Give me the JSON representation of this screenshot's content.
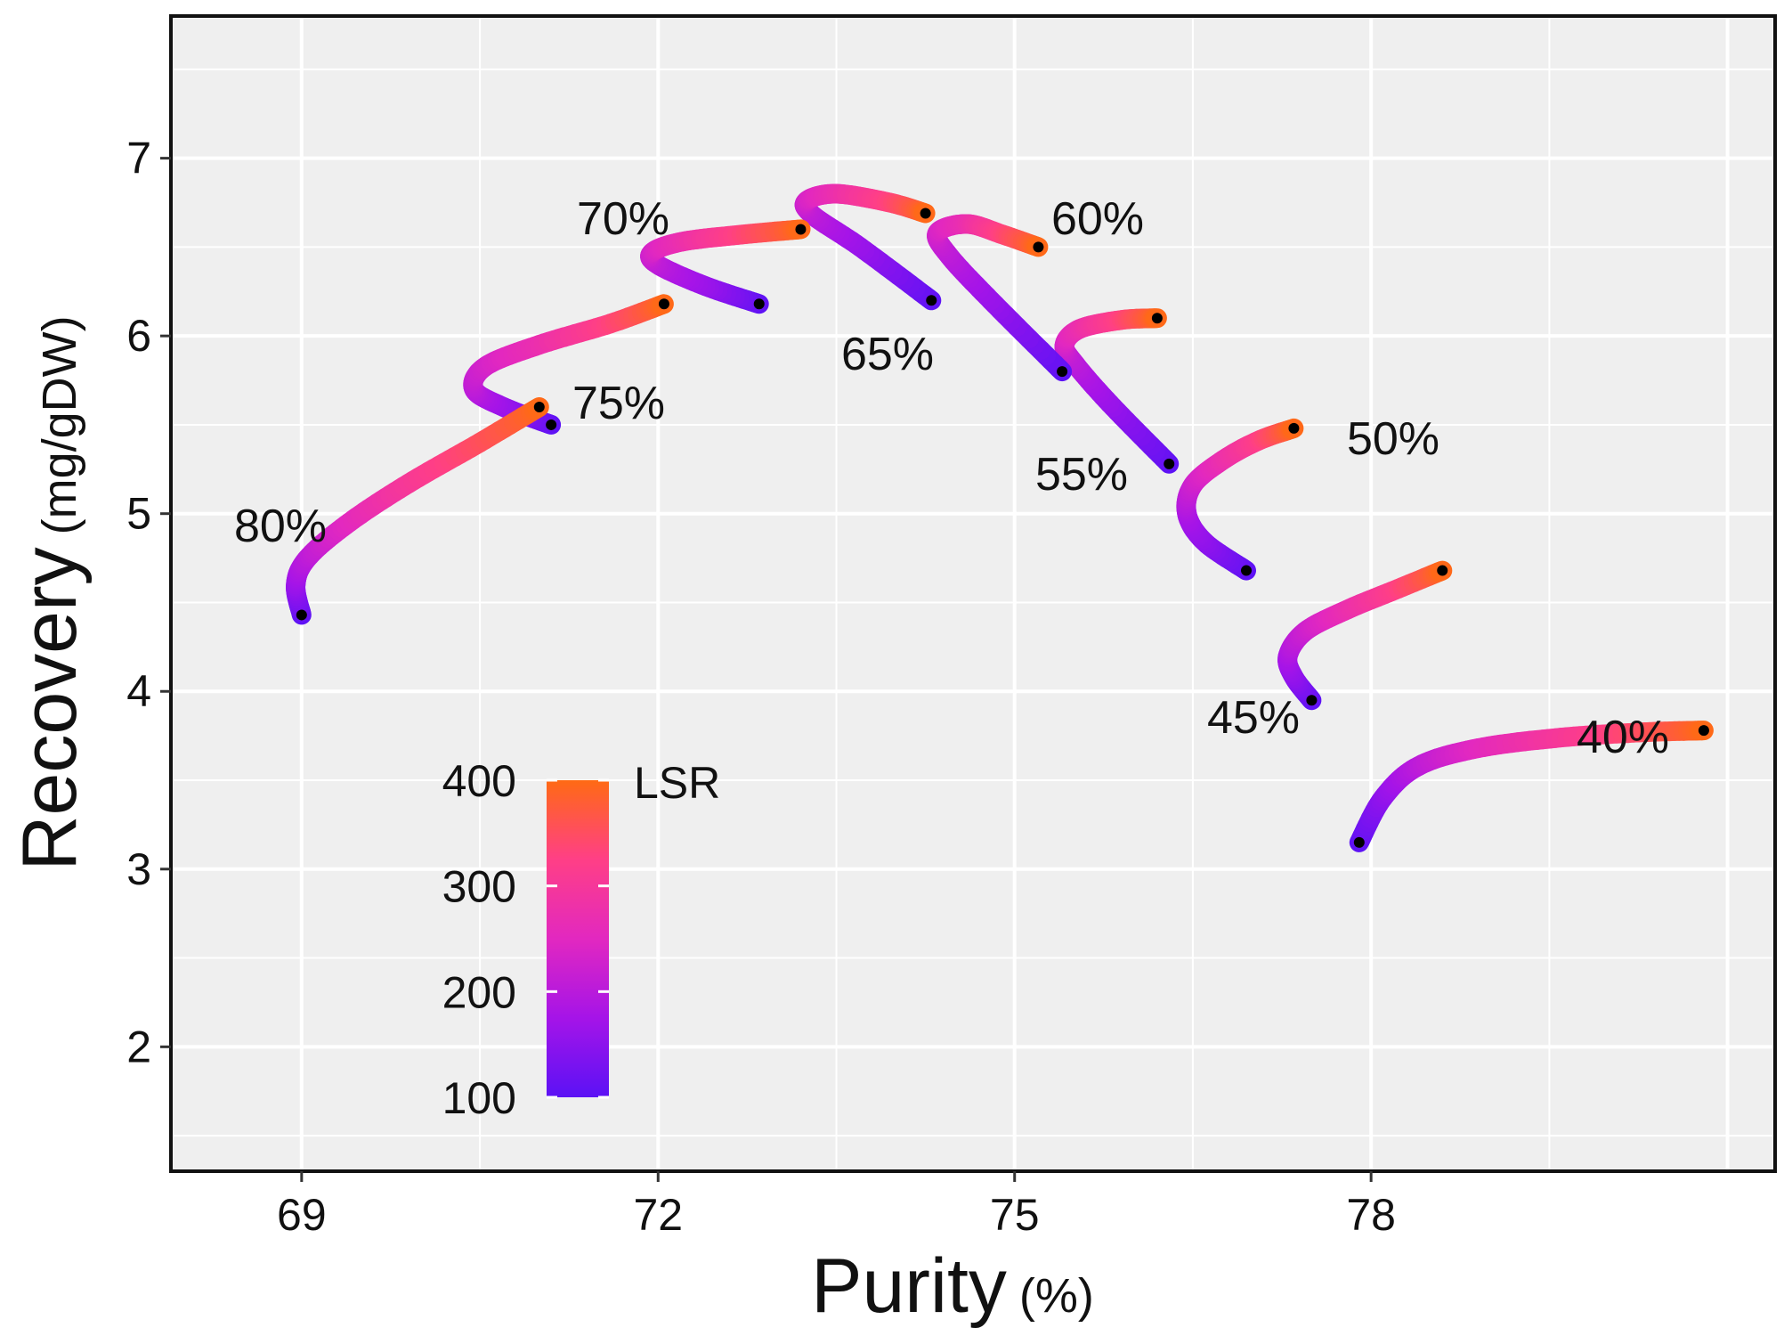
{
  "chart_data": {
    "type": "line",
    "xlabel": "Purity",
    "xlabel_unit": "(%)",
    "ylabel": "Recovery",
    "ylabel_unit": "(mg/gDW)",
    "xlim": [
      67.9,
      81.4
    ],
    "ylim": [
      1.3,
      7.8
    ],
    "x_ticks": [
      69,
      72,
      75,
      78
    ],
    "x_tick_labels": [
      "69",
      "72",
      "75",
      "78"
    ],
    "y_ticks": [
      2,
      3,
      4,
      5,
      6,
      7
    ],
    "y_tick_labels": [
      "2",
      "3",
      "4",
      "5",
      "6",
      "7"
    ],
    "grid": true,
    "color_scale": {
      "title": "LSR",
      "min": 100,
      "max": 400,
      "ticks": [
        100,
        200,
        300,
        400
      ],
      "tick_labels": [
        "100",
        "200",
        "300",
        "400"
      ],
      "colors": [
        "#5b12f5",
        "#a514e8",
        "#e228c0",
        "#ff3f86",
        "#ff6a14"
      ],
      "placement": "bottom-left"
    },
    "endpoint_color": "#000000",
    "series": [
      {
        "name": "40%",
        "label": "40%",
        "points": [
          [
            77.9,
            3.15,
            100
          ],
          [
            78.1,
            3.4,
            150
          ],
          [
            78.4,
            3.58,
            200
          ],
          [
            78.9,
            3.68,
            250
          ],
          [
            79.6,
            3.74,
            300
          ],
          [
            80.3,
            3.77,
            350
          ],
          [
            80.8,
            3.78,
            400
          ]
        ]
      },
      {
        "name": "45%",
        "label": "45%",
        "points": [
          [
            77.5,
            3.95,
            100
          ],
          [
            77.35,
            4.08,
            150
          ],
          [
            77.3,
            4.2,
            180
          ],
          [
            77.45,
            4.34,
            220
          ],
          [
            77.8,
            4.46,
            270
          ],
          [
            78.2,
            4.57,
            320
          ],
          [
            78.6,
            4.68,
            400
          ]
        ]
      },
      {
        "name": "50%",
        "label": "50%",
        "points": [
          [
            76.95,
            4.68,
            100
          ],
          [
            76.6,
            4.84,
            150
          ],
          [
            76.45,
            5.0,
            180
          ],
          [
            76.5,
            5.16,
            220
          ],
          [
            76.75,
            5.3,
            270
          ],
          [
            77.05,
            5.41,
            320
          ],
          [
            77.35,
            5.48,
            400
          ]
        ]
      },
      {
        "name": "55%",
        "label": "55%",
        "points": [
          [
            76.3,
            5.28,
            100
          ],
          [
            75.8,
            5.62,
            160
          ],
          [
            75.5,
            5.85,
            200
          ],
          [
            75.42,
            5.95,
            230
          ],
          [
            75.55,
            6.04,
            270
          ],
          [
            75.9,
            6.09,
            330
          ],
          [
            76.2,
            6.1,
            400
          ]
        ]
      },
      {
        "name": "60%",
        "label": "60%",
        "points": [
          [
            75.4,
            5.8,
            100
          ],
          [
            74.8,
            6.2,
            160
          ],
          [
            74.45,
            6.45,
            200
          ],
          [
            74.35,
            6.58,
            230
          ],
          [
            74.6,
            6.63,
            270
          ],
          [
            74.9,
            6.57,
            330
          ],
          [
            75.2,
            6.5,
            400
          ]
        ]
      },
      {
        "name": "65%",
        "label": "65%",
        "points": [
          [
            74.3,
            6.2,
            100
          ],
          [
            73.7,
            6.5,
            160
          ],
          [
            73.3,
            6.68,
            200
          ],
          [
            73.25,
            6.76,
            230
          ],
          [
            73.5,
            6.8,
            270
          ],
          [
            73.95,
            6.75,
            330
          ],
          [
            74.25,
            6.69,
            400
          ]
        ]
      },
      {
        "name": "70%",
        "label": "70%",
        "points": [
          [
            72.85,
            6.18,
            100
          ],
          [
            72.4,
            6.28,
            160
          ],
          [
            72.0,
            6.4,
            200
          ],
          [
            71.95,
            6.47,
            230
          ],
          [
            72.2,
            6.53,
            270
          ],
          [
            72.7,
            6.57,
            330
          ],
          [
            73.2,
            6.6,
            400
          ]
        ]
      },
      {
        "name": "75%",
        "label": "75%",
        "points": [
          [
            71.1,
            5.5,
            100
          ],
          [
            70.7,
            5.6,
            160
          ],
          [
            70.45,
            5.7,
            200
          ],
          [
            70.55,
            5.83,
            230
          ],
          [
            71.0,
            5.95,
            270
          ],
          [
            71.6,
            6.07,
            330
          ],
          [
            72.05,
            6.18,
            400
          ]
        ]
      },
      {
        "name": "80%",
        "label": "80%",
        "points": [
          [
            69.0,
            4.43,
            100
          ],
          [
            68.95,
            4.6,
            160
          ],
          [
            69.05,
            4.75,
            200
          ],
          [
            69.4,
            4.95,
            250
          ],
          [
            69.9,
            5.17,
            300
          ],
          [
            70.5,
            5.4,
            350
          ],
          [
            71.0,
            5.6,
            400
          ]
        ]
      }
    ]
  }
}
